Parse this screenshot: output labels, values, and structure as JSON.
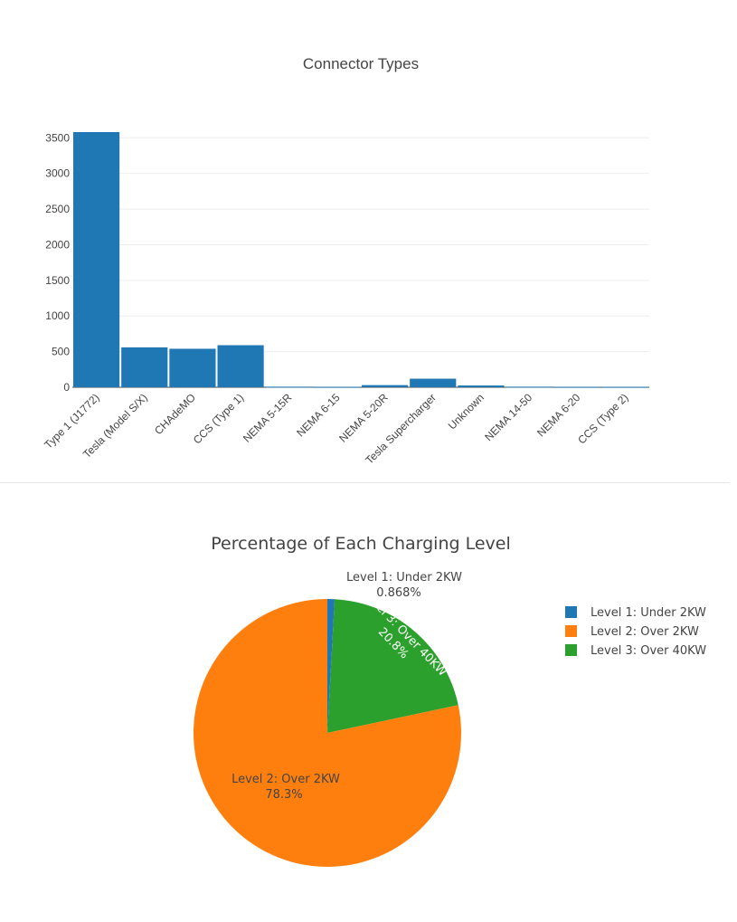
{
  "chart_data": [
    {
      "type": "bar",
      "title": "Connector Types",
      "xlabel": "",
      "ylabel": "",
      "categories": [
        "Type 1 (J1772)",
        "Tesla (Model S/X)",
        "CHAdeMO",
        "CCS (Type 1)",
        "NEMA 5-15R",
        "NEMA 6-15",
        "NEMA 5-20R",
        "Tesla Supercharger",
        "Unknown",
        "NEMA 14-50",
        "NEMA 6-20",
        "CCS (Type 2)"
      ],
      "values": [
        3580,
        560,
        540,
        590,
        8,
        5,
        30,
        120,
        25,
        8,
        5,
        5
      ],
      "ylim": [
        0,
        3580
      ],
      "yticks": [
        0,
        500,
        1000,
        1500,
        2000,
        2500,
        3000,
        3500
      ],
      "grid": true,
      "color": "#1f77b4"
    },
    {
      "type": "pie",
      "title": "Percentage of Each Charging Level",
      "labels": [
        "Level 1: Under 2KW",
        "Level 2: Over 2KW",
        "Level 3: Over 40KW"
      ],
      "percent_labels": [
        "0.868%",
        "78.3%",
        "20.8%"
      ],
      "values": [
        0.868,
        78.3,
        20.8
      ],
      "colors": [
        "#1f77b4",
        "#ff7f0e",
        "#2ca02c"
      ],
      "legend": "top-right"
    }
  ]
}
